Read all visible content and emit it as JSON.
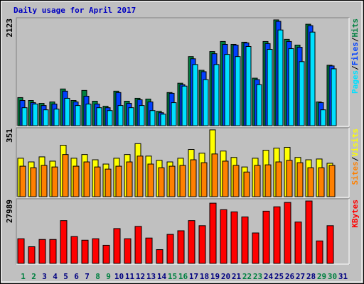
{
  "chart_data": [
    {
      "type": "bar",
      "title": "Daily usage for April 2017",
      "ylim": [
        0,
        2123
      ],
      "yticks": [
        2123
      ],
      "legend_separator": "/",
      "series": [
        {
          "name": "Hits",
          "color": "#008040",
          "values": [
            556,
            499,
            442,
            470,
            727,
            499,
            698,
            485,
            385,
            684,
            485,
            542,
            527,
            285,
            656,
            841,
            1368,
            1097,
            1468,
            1667,
            1610,
            1653,
            941,
            1667,
            2095,
            1710,
            1596,
            2009,
            470,
            1197,
            0
          ]
        },
        {
          "name": "Files",
          "color": "#0040ff",
          "values": [
            499,
            456,
            399,
            428,
            684,
            470,
            584,
            428,
            356,
            656,
            442,
            513,
            470,
            257,
            641,
            812,
            1325,
            1069,
            1425,
            1610,
            1596,
            1639,
            912,
            1625,
            2066,
            1667,
            1553,
            1981,
            456,
            1183,
            0
          ]
        },
        {
          "name": "Pages",
          "color": "#00e0ff",
          "values": [
            356,
            428,
            314,
            328,
            542,
            399,
            428,
            356,
            299,
            399,
            356,
            399,
            299,
            228,
            456,
            784,
            1211,
            912,
            1211,
            1411,
            1368,
            1568,
            812,
            1511,
            1895,
            1525,
            1268,
            1853,
            314,
            1126,
            0
          ]
        }
      ]
    },
    {
      "type": "bar",
      "ylim": [
        0,
        351
      ],
      "yticks": [
        351
      ],
      "legend_separator": "/",
      "series": [
        {
          "name": "Visits",
          "color": "#ffff00",
          "values": [
            198,
            179,
            205,
            183,
            265,
            198,
            217,
            190,
            168,
            198,
            217,
            273,
            209,
            187,
            179,
            198,
            243,
            224,
            344,
            235,
            202,
            153,
            198,
            239,
            250,
            254,
            202,
            190,
            194,
            172,
            0
          ]
        },
        {
          "name": "Sites",
          "color": "#ff8000",
          "values": [
            157,
            149,
            161,
            153,
            217,
            157,
            179,
            153,
            142,
            157,
            179,
            209,
            168,
            149,
            157,
            161,
            190,
            175,
            220,
            183,
            161,
            127,
            161,
            164,
            179,
            187,
            175,
            149,
            149,
            161,
            0
          ]
        }
      ]
    },
    {
      "type": "bar",
      "ylim": [
        0,
        27989
      ],
      "yticks": [
        27989
      ],
      "categories": [
        "1",
        "2",
        "3",
        "4",
        "5",
        "6",
        "7",
        "8",
        "9",
        "10",
        "11",
        "12",
        "13",
        "14",
        "15",
        "16",
        "17",
        "18",
        "19",
        "20",
        "21",
        "22",
        "23",
        "24",
        "25",
        "26",
        "27",
        "28",
        "29",
        "30",
        "31"
      ],
      "weekends": [
        0,
        1,
        7,
        8,
        14,
        15,
        21,
        22,
        28,
        29
      ],
      "weekend_color": "#008040",
      "weekday_color": "#000080",
      "series": [
        {
          "name": "KBytes",
          "color": "#ff0000",
          "values": [
            10812,
            7314,
            10494,
            10494,
            18762,
            11766,
            10176,
            10812,
            7950,
            15264,
            10812,
            16218,
            11130,
            6042,
            12720,
            14310,
            18762,
            16536,
            26394,
            23532,
            22578,
            20352,
            13356,
            22896,
            24804,
            26712,
            18126,
            27348,
            9858,
            16536,
            0
          ]
        }
      ]
    }
  ]
}
